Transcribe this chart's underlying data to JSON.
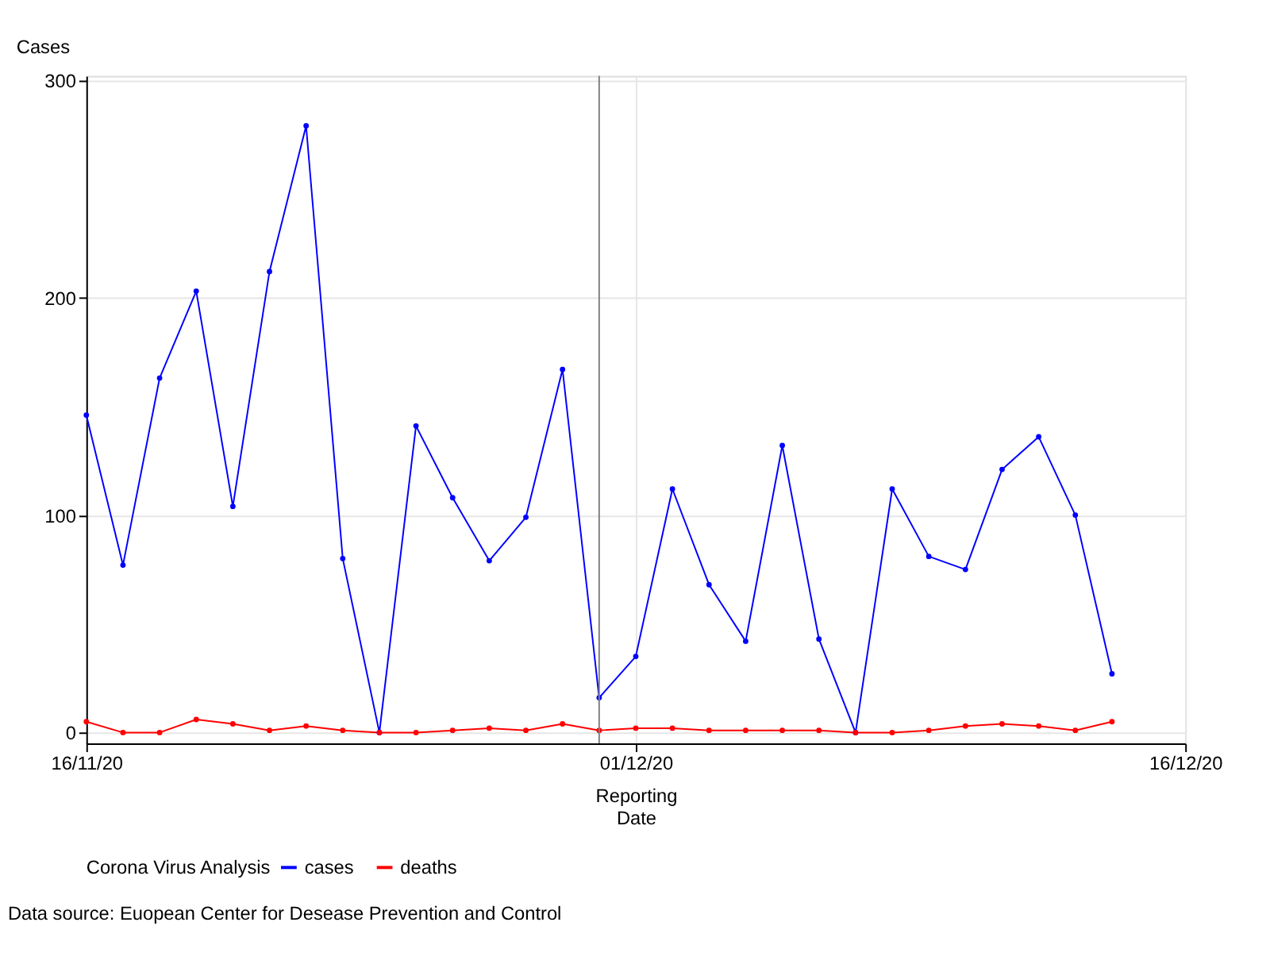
{
  "chart_data": {
    "type": "line",
    "xlabel": "Reporting Date",
    "ylabel": "Cases",
    "legend_title": "Corona Virus Analysis",
    "x": [
      "2020-11-16",
      "2020-11-17",
      "2020-11-18",
      "2020-11-19",
      "2020-11-20",
      "2020-11-21",
      "2020-11-22",
      "2020-11-23",
      "2020-11-24",
      "2020-11-25",
      "2020-11-26",
      "2020-11-27",
      "2020-11-28",
      "2020-11-29",
      "2020-11-30",
      "2020-12-01",
      "2020-12-02",
      "2020-12-03",
      "2020-12-04",
      "2020-12-05",
      "2020-12-06",
      "2020-12-07",
      "2020-12-08",
      "2020-12-09",
      "2020-12-10",
      "2020-12-11",
      "2020-12-12",
      "2020-12-13",
      "2020-12-14"
    ],
    "series": [
      {
        "name": "cases",
        "color": "#0000ff",
        "values": [
          146,
          77,
          163,
          203,
          104,
          212,
          279,
          80,
          0,
          141,
          108,
          79,
          99,
          167,
          16,
          35,
          112,
          68,
          42,
          132,
          43,
          0,
          112,
          81,
          75,
          121,
          136,
          100,
          27
        ]
      },
      {
        "name": "deaths",
        "color": "#ff0000",
        "values": [
          5,
          0,
          0,
          6,
          4,
          1,
          3,
          1,
          0,
          0,
          1,
          2,
          1,
          4,
          1,
          2,
          2,
          1,
          1,
          1,
          1,
          0,
          0,
          1,
          3,
          4,
          3,
          1,
          5
        ]
      }
    ],
    "xlim": [
      "2020-11-16",
      "2020-12-16"
    ],
    "xticks": [
      {
        "value": "2020-11-16",
        "label": "16/11/20"
      },
      {
        "value": "2020-12-01",
        "label": "01/12/20"
      },
      {
        "value": "2020-12-16",
        "label": "16/12/20"
      }
    ],
    "ylim": [
      -5,
      302
    ],
    "yticks": [
      0,
      100,
      200,
      300
    ],
    "ref_lines": [
      {
        "axis": "x",
        "value": "2020-11-30",
        "color": "#808080"
      }
    ],
    "annotations": [
      "Data source: Euopean Center for Desease Prevention and Control"
    ],
    "grid": true,
    "legend": "bottom",
    "marker": "circle",
    "line_style": "solid"
  }
}
